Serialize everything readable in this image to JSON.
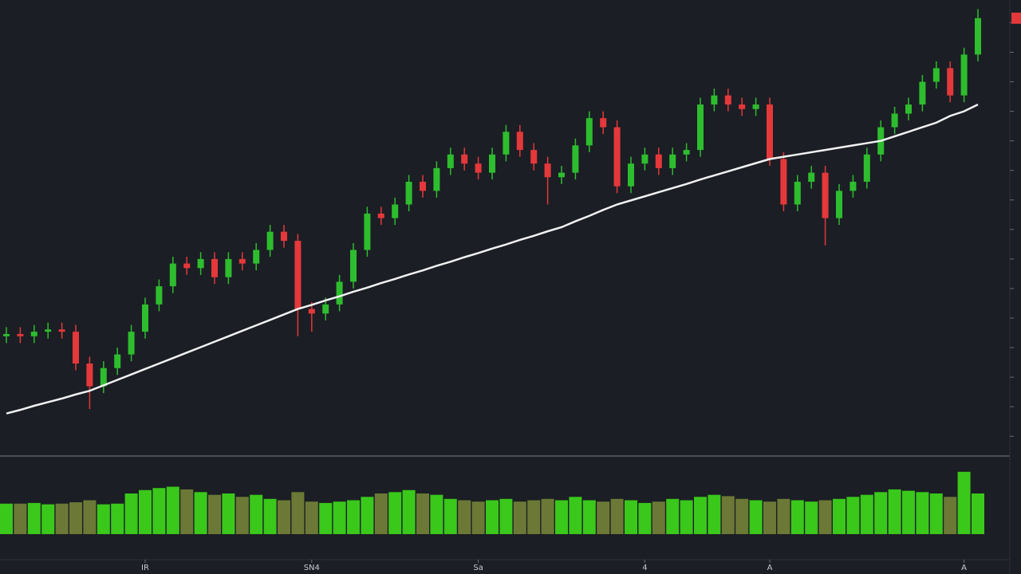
{
  "chart_data": {
    "type": "candlestick",
    "colors": {
      "up": "#2ebd2e",
      "down": "#e5383b",
      "ma": "#f2f2f2",
      "volume_up": "#3fe61a",
      "volume_down": "#7a8a3a"
    },
    "open": [
      26,
      26.5,
      26,
      27,
      27.5,
      27,
      20,
      15,
      19,
      22,
      27,
      33,
      37,
      42,
      41,
      43,
      39,
      43,
      42,
      45,
      49,
      47,
      32,
      31,
      33,
      38,
      45,
      53,
      52,
      55,
      60,
      58,
      63,
      66,
      64,
      62,
      66,
      71,
      67,
      64,
      61,
      62,
      68,
      74,
      72,
      59,
      64,
      66,
      63,
      66,
      67,
      77,
      79,
      77,
      76,
      77,
      65,
      55,
      60,
      62,
      52,
      58,
      60,
      66,
      72,
      75,
      77,
      82,
      85,
      79,
      88
    ],
    "high": [
      28,
      28,
      28.5,
      29,
      29,
      28.5,
      21.5,
      20.5,
      23.5,
      28.5,
      34.5,
      38.5,
      43.5,
      43.5,
      44.5,
      44.5,
      44.5,
      44.5,
      46.5,
      50.5,
      50.5,
      48.5,
      33.5,
      34.5,
      39.5,
      46.5,
      54.5,
      54.5,
      56.5,
      61.5,
      61.5,
      64.5,
      67.5,
      67.5,
      65.5,
      67.5,
      72.5,
      72.5,
      68.5,
      65.5,
      63.5,
      69.5,
      75.5,
      75.5,
      73.5,
      65.5,
      67.5,
      67.5,
      67.5,
      68.5,
      78.5,
      80.5,
      80.5,
      78.5,
      78.5,
      78.5,
      66.5,
      61.5,
      63.5,
      63.5,
      59.5,
      61.5,
      67.5,
      73.5,
      76.5,
      78.5,
      83.5,
      86.5,
      86.5,
      89.5,
      98
    ],
    "low": [
      24.5,
      24.5,
      24.5,
      25.5,
      25.5,
      18.5,
      10,
      13.5,
      17.5,
      20.5,
      25.5,
      31.5,
      35.5,
      39.5,
      39.5,
      37.5,
      37.5,
      40.5,
      40.5,
      43.5,
      45.5,
      26,
      27,
      29.5,
      31.5,
      36.5,
      43.5,
      50.5,
      50.5,
      53.5,
      56.5,
      56.5,
      61.5,
      62.5,
      60.5,
      60.5,
      64.5,
      65.5,
      62.5,
      55,
      59.5,
      60.5,
      66.5,
      70.5,
      57.5,
      57.5,
      62.5,
      61.5,
      61.5,
      64.5,
      65.5,
      75.5,
      75.5,
      74.5,
      74.5,
      63.5,
      53.5,
      53.5,
      58.5,
      46,
      50.5,
      56.5,
      58.5,
      64.5,
      70.5,
      73.5,
      75.5,
      80.5,
      77.5,
      77.5,
      86.5
    ],
    "close": [
      26.5,
      26,
      27,
      27.5,
      27,
      20,
      15,
      19,
      22,
      27,
      33,
      37,
      42,
      41,
      43,
      39,
      43,
      42,
      45,
      49,
      47,
      32,
      31,
      33,
      38,
      45,
      53,
      52,
      55,
      60,
      58,
      63,
      66,
      64,
      62,
      66,
      71,
      67,
      64,
      61,
      62,
      68,
      74,
      72,
      59,
      64,
      66,
      63,
      66,
      67,
      77,
      79,
      77,
      76,
      77,
      65,
      55,
      60,
      62,
      52,
      58,
      60,
      66,
      72,
      75,
      77,
      82,
      85,
      79,
      88,
      96
    ],
    "ma": [
      9,
      9.8,
      10.7,
      11.5,
      12.3,
      13.2,
      14,
      15.2,
      16.4,
      17.6,
      18.8,
      20,
      21.2,
      22.4,
      23.6,
      24.8,
      26,
      27.2,
      28.4,
      29.6,
      30.8,
      32,
      32.9,
      33.9,
      34.8,
      35.8,
      36.7,
      37.7,
      38.6,
      39.6,
      40.5,
      41.5,
      42.4,
      43.4,
      44.3,
      45.3,
      46.2,
      47.2,
      48.1,
      49.1,
      50,
      51.3,
      52.5,
      53.8,
      55,
      55.9,
      56.8,
      57.7,
      58.6,
      59.5,
      60.5,
      61.4,
      62.3,
      63.2,
      64.1,
      65,
      65.5,
      66,
      66.5,
      67,
      67.5,
      68,
      68.5,
      69,
      70,
      71,
      72,
      73,
      74.5,
      75.5,
      77
    ],
    "volume": [
      45,
      45,
      46,
      44,
      45,
      47,
      50,
      44,
      45,
      60,
      65,
      68,
      70,
      66,
      62,
      58,
      60,
      55,
      58,
      52,
      50,
      62,
      48,
      46,
      48,
      50,
      55,
      60,
      62,
      65,
      60,
      58,
      52,
      50,
      48,
      50,
      52,
      48,
      50,
      52,
      50,
      55,
      50,
      48,
      52,
      50,
      46,
      48,
      52,
      50,
      55,
      58,
      56,
      52,
      50,
      48,
      52,
      50,
      48,
      50,
      52,
      55,
      58,
      62,
      66,
      64,
      62,
      60,
      55,
      92,
      60
    ],
    "ylim": [
      0,
      100
    ],
    "yticks": [
      4,
      10.5,
      17,
      23.5,
      30,
      36.5,
      43,
      49.5,
      56,
      62.5,
      69,
      75.5,
      82,
      88.5,
      95
    ],
    "volume_ylim": [
      0,
      100
    ],
    "xticks": [
      {
        "value": 10,
        "label": "IR"
      },
      {
        "value": 22,
        "label": "SN4"
      },
      {
        "value": 34,
        "label": "Sa"
      },
      {
        "value": 46,
        "label": "4"
      },
      {
        "value": 55,
        "label": "A"
      },
      {
        "value": 69,
        "label": "A"
      }
    ]
  }
}
